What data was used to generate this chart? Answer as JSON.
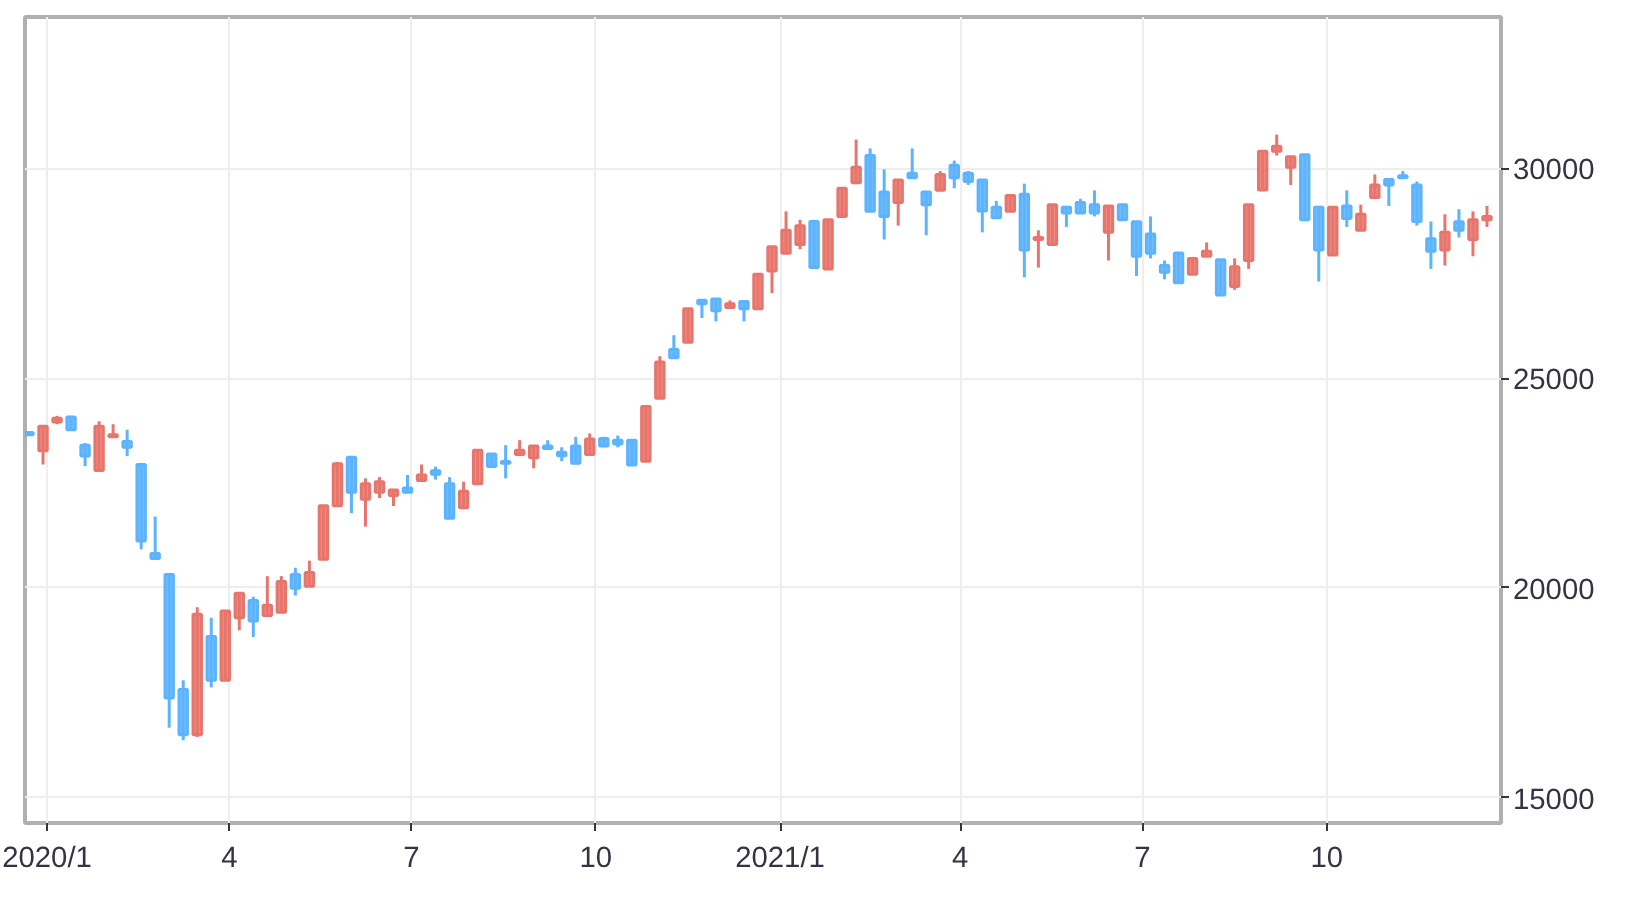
{
  "chart_data": {
    "type": "candlestick",
    "x": [
      "2019-12-23",
      "2019-12-30",
      "2020-01-06",
      "2020-01-13",
      "2020-01-20",
      "2020-01-27",
      "2020-02-03",
      "2020-02-10",
      "2020-02-17",
      "2020-02-24",
      "2020-03-02",
      "2020-03-09",
      "2020-03-16",
      "2020-03-23",
      "2020-03-30",
      "2020-04-06",
      "2020-04-13",
      "2020-04-20",
      "2020-04-27",
      "2020-05-04",
      "2020-05-11",
      "2020-05-18",
      "2020-05-25",
      "2020-06-01",
      "2020-06-08",
      "2020-06-15",
      "2020-06-22",
      "2020-06-29",
      "2020-07-06",
      "2020-07-13",
      "2020-07-20",
      "2020-07-27",
      "2020-08-03",
      "2020-08-10",
      "2020-08-17",
      "2020-08-24",
      "2020-08-31",
      "2020-09-07",
      "2020-09-14",
      "2020-09-21",
      "2020-09-28",
      "2020-10-05",
      "2020-10-12",
      "2020-10-19",
      "2020-10-26",
      "2020-11-02",
      "2020-11-09",
      "2020-11-16",
      "2020-11-23",
      "2020-11-30",
      "2020-12-07",
      "2020-12-14",
      "2020-12-21",
      "2020-12-28",
      "2021-01-04",
      "2021-01-11",
      "2021-01-18",
      "2021-01-25",
      "2021-02-01",
      "2021-02-08",
      "2021-02-15",
      "2021-02-22",
      "2021-03-01",
      "2021-03-08",
      "2021-03-15",
      "2021-03-22",
      "2021-03-29",
      "2021-04-05",
      "2021-04-12",
      "2021-04-19",
      "2021-04-26",
      "2021-05-03",
      "2021-05-10",
      "2021-05-17",
      "2021-05-24",
      "2021-05-31",
      "2021-06-07",
      "2021-06-14",
      "2021-06-21",
      "2021-06-28",
      "2021-07-05",
      "2021-07-12",
      "2021-07-19",
      "2021-07-26",
      "2021-08-02",
      "2021-08-09",
      "2021-08-16",
      "2021-08-23",
      "2021-08-30",
      "2021-09-06",
      "2021-09-13",
      "2021-09-20",
      "2021-09-27",
      "2021-10-04",
      "2021-10-11",
      "2021-10-18",
      "2021-10-25",
      "2021-11-01",
      "2021-11-08",
      "2021-11-15",
      "2021-11-22",
      "2021-11-29",
      "2021-12-06",
      "2021-12-13",
      "2021-12-20"
    ],
    "ohlc": [
      [
        23700,
        23700,
        23650,
        23650
      ],
      [
        23270,
        23850,
        22940,
        23850
      ],
      [
        23950,
        24100,
        23900,
        24040
      ],
      [
        24070,
        24100,
        23770,
        23770
      ],
      [
        23400,
        23450,
        22900,
        23140
      ],
      [
        22800,
        23970,
        22800,
        23850
      ],
      [
        23600,
        23900,
        23600,
        23650
      ],
      [
        23490,
        23770,
        23140,
        23350
      ],
      [
        22940,
        22940,
        20920,
        21120
      ],
      [
        20820,
        21700,
        20700,
        20700
      ],
      [
        20320,
        20320,
        16670,
        17380
      ],
      [
        17580,
        17800,
        16370,
        16500
      ],
      [
        16500,
        19540,
        16450,
        19370
      ],
      [
        18840,
        19290,
        17630,
        17800
      ],
      [
        17800,
        19450,
        17800,
        19450
      ],
      [
        19290,
        19870,
        18990,
        19870
      ],
      [
        19700,
        19790,
        18830,
        19210
      ],
      [
        19340,
        20280,
        19340,
        19590
      ],
      [
        19420,
        20280,
        19420,
        20150
      ],
      [
        20320,
        20480,
        19820,
        19990
      ],
      [
        20040,
        20650,
        20040,
        20370
      ],
      [
        20680,
        21960,
        20680,
        21960
      ],
      [
        21960,
        23000,
        21960,
        22960
      ],
      [
        23110,
        23110,
        21780,
        22280
      ],
      [
        22110,
        22610,
        21460,
        22480
      ],
      [
        22280,
        22640,
        22140,
        22530
      ],
      [
        22200,
        22330,
        21950,
        22330
      ],
      [
        22380,
        22690,
        22280,
        22280
      ],
      [
        22560,
        22940,
        22560,
        22690
      ],
      [
        22790,
        22890,
        22580,
        22710
      ],
      [
        22480,
        22640,
        21660,
        21660
      ],
      [
        21910,
        22530,
        21910,
        22300
      ],
      [
        22480,
        23280,
        22480,
        23280
      ],
      [
        23190,
        23190,
        22890,
        22890
      ],
      [
        23010,
        23400,
        22610,
        22970
      ],
      [
        23180,
        23520,
        23180,
        23280
      ],
      [
        23100,
        23380,
        22850,
        23380
      ],
      [
        23380,
        23520,
        23320,
        23320
      ],
      [
        23230,
        23350,
        23020,
        23150
      ],
      [
        23380,
        23600,
        22970,
        22970
      ],
      [
        23180,
        23680,
        23180,
        23550
      ],
      [
        23560,
        23600,
        23350,
        23380
      ],
      [
        23520,
        23630,
        23350,
        23430
      ],
      [
        23520,
        23520,
        22930,
        22930
      ],
      [
        23020,
        24320,
        23020,
        24320
      ],
      [
        24520,
        25520,
        24520,
        25380
      ],
      [
        25680,
        26020,
        25480,
        25480
      ],
      [
        25850,
        26650,
        25850,
        26650
      ],
      [
        26850,
        26850,
        26430,
        26770
      ],
      [
        26880,
        26880,
        26350,
        26600
      ],
      [
        26680,
        26850,
        26680,
        26770
      ],
      [
        26820,
        26820,
        26350,
        26650
      ],
      [
        26650,
        27470,
        26650,
        27470
      ],
      [
        27550,
        28130,
        27020,
        28130
      ],
      [
        27970,
        28970,
        27970,
        28520
      ],
      [
        28180,
        28770,
        28070,
        28630
      ],
      [
        28730,
        28770,
        27630,
        27630
      ],
      [
        27600,
        28770,
        27600,
        28770
      ],
      [
        28850,
        29520,
        28850,
        29520
      ],
      [
        29650,
        30680,
        29650,
        30020
      ],
      [
        30300,
        30470,
        28970,
        28970
      ],
      [
        29430,
        29970,
        28300,
        28850
      ],
      [
        29180,
        29720,
        28630,
        29720
      ],
      [
        29880,
        30470,
        29770,
        29770
      ],
      [
        29430,
        29430,
        28400,
        29130
      ],
      [
        29470,
        29930,
        29470,
        29850
      ],
      [
        30070,
        30180,
        29520,
        29770
      ],
      [
        29880,
        29930,
        29600,
        29680
      ],
      [
        29720,
        29720,
        28470,
        28980
      ],
      [
        29070,
        29220,
        28820,
        28820
      ],
      [
        28970,
        29350,
        28970,
        29350
      ],
      [
        29380,
        29630,
        27400,
        28050
      ],
      [
        28300,
        28520,
        27630,
        28350
      ],
      [
        28180,
        29130,
        28180,
        29130
      ],
      [
        29070,
        29070,
        28600,
        28930
      ],
      [
        29180,
        29270,
        28930,
        28930
      ],
      [
        29130,
        29470,
        28850,
        28930
      ],
      [
        28470,
        29100,
        27800,
        29100
      ],
      [
        29130,
        29130,
        28770,
        28770
      ],
      [
        28720,
        28720,
        27430,
        27900
      ],
      [
        28430,
        28850,
        27850,
        27970
      ],
      [
        27680,
        27800,
        27350,
        27520
      ],
      [
        27980,
        27980,
        27270,
        27270
      ],
      [
        27470,
        27850,
        27470,
        27850
      ],
      [
        27900,
        28230,
        27900,
        28020
      ],
      [
        27820,
        27820,
        26980,
        26980
      ],
      [
        27180,
        27850,
        27100,
        27650
      ],
      [
        27800,
        29130,
        27600,
        29130
      ],
      [
        29480,
        30400,
        29480,
        30400
      ],
      [
        30400,
        30800,
        30300,
        30520
      ],
      [
        30020,
        30270,
        29600,
        30270
      ],
      [
        30320,
        30320,
        28770,
        28770
      ],
      [
        29070,
        29070,
        27300,
        28050
      ],
      [
        27930,
        29070,
        27930,
        29070
      ],
      [
        29100,
        29470,
        28600,
        28800
      ],
      [
        28520,
        29130,
        28520,
        28900
      ],
      [
        29300,
        29850,
        29300,
        29600
      ],
      [
        29730,
        29730,
        29100,
        29600
      ],
      [
        29820,
        29930,
        29770,
        29770
      ],
      [
        29600,
        29680,
        28630,
        28730
      ],
      [
        28320,
        28730,
        27600,
        28020
      ],
      [
        28050,
        28900,
        27680,
        28470
      ],
      [
        28720,
        29020,
        28350,
        28520
      ],
      [
        28300,
        28970,
        27900,
        28770
      ],
      [
        28770,
        29100,
        28600,
        28850
      ]
    ],
    "colors": [
      "#5cb3ff",
      "#e8756c",
      "#e8756c",
      "#5cb3ff",
      "#5cb3ff",
      "#e8756c",
      "#e8756c",
      "#5cb3ff",
      "#5cb3ff",
      "#5cb3ff",
      "#5cb3ff",
      "#5cb3ff",
      "#e8756c",
      "#5cb3ff",
      "#e8756c",
      "#e8756c",
      "#5cb3ff",
      "#e8756c",
      "#e8756c",
      "#5cb3ff",
      "#e8756c",
      "#e8756c",
      "#e8756c",
      "#5cb3ff",
      "#e8756c",
      "#e8756c",
      "#e8756c",
      "#5cb3ff",
      "#e8756c",
      "#5cb3ff",
      "#5cb3ff",
      "#e8756c",
      "#e8756c",
      "#5cb3ff",
      "#5cb3ff",
      "#e8756c",
      "#e8756c",
      "#5cb3ff",
      "#5cb3ff",
      "#5cb3ff",
      "#e8756c",
      "#5cb3ff",
      "#5cb3ff",
      "#5cb3ff",
      "#e8756c",
      "#e8756c",
      "#5cb3ff",
      "#e8756c",
      "#5cb3ff",
      "#5cb3ff",
      "#e8756c",
      "#5cb3ff",
      "#e8756c",
      "#e8756c",
      "#e8756c",
      "#e8756c",
      "#5cb3ff",
      "#e8756c",
      "#e8756c",
      "#e8756c",
      "#5cb3ff",
      "#5cb3ff",
      "#e8756c",
      "#5cb3ff",
      "#5cb3ff",
      "#e8756c",
      "#5cb3ff",
      "#5cb3ff",
      "#5cb3ff",
      "#5cb3ff",
      "#e8756c",
      "#5cb3ff",
      "#e8756c",
      "#e8756c",
      "#5cb3ff",
      "#5cb3ff",
      "#5cb3ff",
      "#e8756c",
      "#5cb3ff",
      "#5cb3ff",
      "#5cb3ff",
      "#5cb3ff",
      "#5cb3ff",
      "#e8756c",
      "#e8756c",
      "#5cb3ff",
      "#e8756c",
      "#e8756c",
      "#e8756c",
      "#e8756c",
      "#e8756c",
      "#5cb3ff",
      "#5cb3ff",
      "#e8756c",
      "#5cb3ff",
      "#e8756c",
      "#e8756c",
      "#5cb3ff",
      "#5cb3ff",
      "#5cb3ff",
      "#5cb3ff",
      "#e8756c",
      "#5cb3ff",
      "#e8756c",
      "#e8756c"
    ],
    "xlim": [
      "2019-12-21",
      "2021-12-27"
    ],
    "xticks": [
      {
        "value": "2020-01-01",
        "label": "2020/1"
      },
      {
        "value": "2020-04-01",
        "label": "4"
      },
      {
        "value": "2020-07-01",
        "label": "7"
      },
      {
        "value": "2020-10-01",
        "label": "10"
      },
      {
        "value": "2021-01-01",
        "label": "2021/1"
      },
      {
        "value": "2021-04-01",
        "label": "4"
      },
      {
        "value": "2021-07-01",
        "label": "7"
      },
      {
        "value": "2021-10-01",
        "label": "10"
      }
    ],
    "ylim": [
      14400,
      33600
    ],
    "yticks": [
      15000,
      20000,
      25000,
      30000
    ],
    "grid": true
  }
}
